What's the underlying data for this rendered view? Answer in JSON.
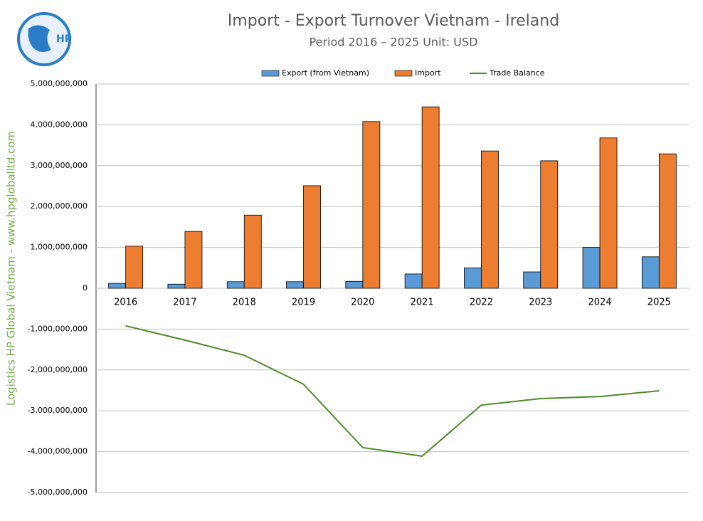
{
  "logo_text": "HP",
  "watermark": "Logistics HP Global Vietnam - www.hpgloballtd.com",
  "chart_data": {
    "type": "bar",
    "title": "Import - Export Turnover Vietnam - Ireland",
    "subtitle": "Period 2016 – 2025  Unit: USD",
    "categories": [
      "2016",
      "2017",
      "2018",
      "2019",
      "2020",
      "2021",
      "2022",
      "2023",
      "2024",
      "2025"
    ],
    "series": [
      {
        "name": "Export (from Vietnam)",
        "color": "#5b9bd5",
        "values": [
          120000000,
          100000000,
          160000000,
          160000000,
          170000000,
          350000000,
          500000000,
          400000000,
          1000000000,
          770000000
        ]
      },
      {
        "name": "Import",
        "color": "#ed7d31",
        "values": [
          1030000000,
          1390000000,
          1790000000,
          2510000000,
          4080000000,
          4440000000,
          3360000000,
          3120000000,
          3680000000,
          3290000000
        ]
      },
      {
        "name": "Trade Balance",
        "color": "#4e8a2b",
        "type": "line",
        "values": [
          -920000000,
          -1270000000,
          -1640000000,
          -2350000000,
          -3900000000,
          -4110000000,
          -2860000000,
          -2700000000,
          -2650000000,
          -2510000000
        ]
      }
    ],
    "ylim": [
      -5000000000,
      5000000000
    ],
    "yticks": [
      {
        "value": -5000000000,
        "label": "-5,000,000,000"
      },
      {
        "value": -4000000000,
        "label": "-4,000,000,000"
      },
      {
        "value": -3000000000,
        "label": "-3,000,000,000"
      },
      {
        "value": -2000000000,
        "label": "-2,000,000,000"
      },
      {
        "value": -1000000000,
        "label": "-1,000,000,000"
      },
      0,
      {
        "value": 1000000000,
        "label": "1,000,000,000"
      },
      {
        "value": 2000000000,
        "label": "2,000,000,000"
      },
      {
        "value": 3000000000,
        "label": "3,000,000,000"
      },
      {
        "value": 4000000000,
        "label": "4,000,000,000"
      },
      {
        "value": 5000000000,
        "label": "5,000,000,000"
      }
    ],
    "grid": true,
    "legend": "top"
  }
}
